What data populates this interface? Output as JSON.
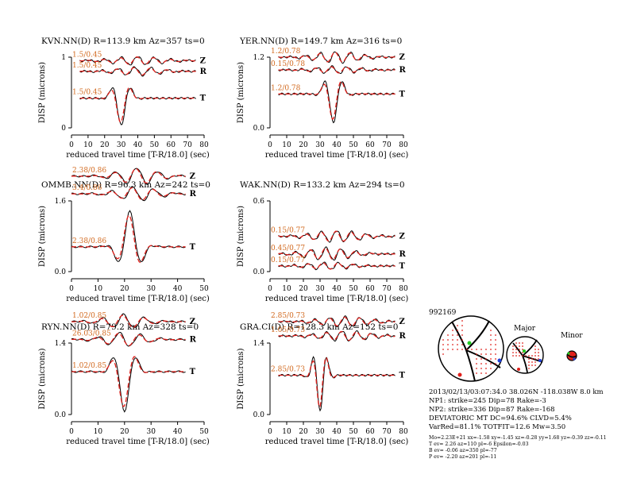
{
  "colors": {
    "observed": "#000000",
    "synthetic": "#e0201b",
    "label": "#d2691e",
    "ball_fill": "#ffffff",
    "dots": "#e0201b"
  },
  "chart_data": [
    {
      "type": "line",
      "title": "KVN.NN(D) R=113.9 km Az=357 ts=0",
      "xlabel": "reduced travel time [T-R/18.0] (sec)",
      "ylabel": "DISP (microns)",
      "xlim": [
        0,
        80
      ],
      "xticks": [
        "0",
        "10",
        "20",
        "30",
        "40",
        "50",
        "60",
        "70",
        "80"
      ],
      "yticks": [
        "0",
        "1"
      ],
      "components": [
        {
          "name": "Z",
          "label": "1.5/0.45",
          "offset": 0.95,
          "amp": 0.06,
          "start": 5,
          "end": 75,
          "center": 40,
          "width": 20,
          "period": 10,
          "phase": 0
        },
        {
          "name": "R",
          "label": "1.5/0.45",
          "offset": 0.8,
          "amp": 0.06,
          "start": 5,
          "end": 75,
          "center": 40,
          "width": 18,
          "period": 10,
          "phase": 1.2
        },
        {
          "name": "T",
          "label": "1.5/0.45",
          "offset": 0.42,
          "amp": 0.38,
          "start": 5,
          "end": 75,
          "center": 30,
          "width": 6,
          "period": 13,
          "phase": 3.14
        }
      ]
    },
    {
      "type": "line",
      "title": "YER.NN(D) R=149.7 km Az=316 ts=0",
      "xlabel": "reduced travel time [T-R/18.0] (sec)",
      "ylabel": "DISP (microns)",
      "xlim": [
        0,
        80
      ],
      "xticks": [
        "0",
        "10",
        "20",
        "30",
        "40",
        "50",
        "60",
        "70",
        "80"
      ],
      "yticks": [
        "0.0",
        "1.2"
      ],
      "components": [
        {
          "name": "Z",
          "label": "1.2/0.78",
          "offset": 1.0,
          "amp": 0.08,
          "start": 5,
          "end": 75,
          "center": 40,
          "width": 18,
          "period": 9,
          "phase": 0.5
        },
        {
          "name": "R",
          "label": "0.15/0.78",
          "offset": 0.82,
          "amp": 0.05,
          "start": 5,
          "end": 75,
          "center": 40,
          "width": 18,
          "period": 9,
          "phase": 2
        },
        {
          "name": "T",
          "label": "1.2/0.78",
          "offset": 0.48,
          "amp": 0.4,
          "start": 5,
          "end": 75,
          "center": 38,
          "width": 6,
          "period": 12,
          "phase": 3.14
        }
      ]
    },
    {
      "type": "line",
      "title": "OMMB.NN(D) R=96.3 km Az=242 ts=0",
      "xlabel": "reduced travel time [T-R/18.0] (sec)",
      "ylabel": "DISP (microns)",
      "xlim": [
        0,
        50
      ],
      "xticks": [
        "0",
        "10",
        "20",
        "30",
        "40",
        "50"
      ],
      "yticks": [
        "0.0",
        "1.6"
      ],
      "components": [
        {
          "name": "Z",
          "label": "2.38/0.86",
          "offset": 1.35,
          "amp": 0.12,
          "start": 0,
          "end": 43,
          "center": 25,
          "width": 10,
          "period": 8,
          "phase": 0.3
        },
        {
          "name": "R",
          "label": "3.4/0.86",
          "offset": 1.1,
          "amp": 0.1,
          "start": 0,
          "end": 43,
          "center": 25,
          "width": 10,
          "period": 8,
          "phase": 1.5
        },
        {
          "name": "T",
          "label": "2.38/0.86",
          "offset": 0.35,
          "amp": 0.5,
          "start": 0,
          "end": 43,
          "center": 22,
          "width": 5,
          "period": 10,
          "phase": 0
        }
      ]
    },
    {
      "type": "line",
      "title": "WAK.NN(D) R=133.2 km Az=294 ts=0",
      "xlabel": "reduced travel time [T-R/18.0] (sec)",
      "ylabel": "DISP (microns)",
      "xlim": [
        0,
        80
      ],
      "xticks": [
        "0",
        "10",
        "20",
        "30",
        "40",
        "50",
        "60",
        "70",
        "80"
      ],
      "yticks": [
        "0.0",
        "0.6"
      ],
      "components": [
        {
          "name": "Z",
          "label": "0.15/0.77",
          "offset": 0.5,
          "amp": 0.08,
          "start": 5,
          "end": 75,
          "center": 40,
          "width": 20,
          "period": 9,
          "phase": 0
        },
        {
          "name": "R",
          "label": "0.45/0.77",
          "offset": 0.25,
          "amp": 0.09,
          "start": 5,
          "end": 75,
          "center": 35,
          "width": 18,
          "period": 9,
          "phase": 1
        },
        {
          "name": "T",
          "label": "0.15/0.77",
          "offset": 0.08,
          "amp": 0.05,
          "start": 5,
          "end": 75,
          "center": 35,
          "width": 18,
          "period": 9,
          "phase": 2
        }
      ]
    },
    {
      "type": "line",
      "title": "RYN.NN(D) R=79.2 km Az=328 ts=0",
      "xlabel": "reduced travel time [T-R/18.0] (sec)",
      "ylabel": "DISP (microns)",
      "xlim": [
        0,
        50
      ],
      "xticks": [
        "0",
        "10",
        "20",
        "30",
        "40",
        "50"
      ],
      "yticks": [
        "0.0",
        "1.4"
      ],
      "components": [
        {
          "name": "Z",
          "label": "1.02/0.85",
          "offset": 1.3,
          "amp": 0.1,
          "start": 0,
          "end": 43,
          "center": 20,
          "width": 10,
          "period": 8,
          "phase": 0.3
        },
        {
          "name": "R",
          "label": "26.03/0.85",
          "offset": 1.05,
          "amp": 0.1,
          "start": 0,
          "end": 43,
          "center": 20,
          "width": 10,
          "period": 8,
          "phase": 1.6
        },
        {
          "name": "T",
          "label": "1.02/0.85",
          "offset": 0.6,
          "amp": 0.55,
          "start": 0,
          "end": 43,
          "center": 20,
          "width": 4.5,
          "period": 10,
          "phase": 3.14
        }
      ]
    },
    {
      "type": "line",
      "title": "GRA.CI(D) R=128.3 km Az=152 ts=0",
      "xlabel": "reduced travel time [T-R/18.0] (sec)",
      "ylabel": "DISP (microns)",
      "xlim": [
        0,
        80
      ],
      "xticks": [
        "0",
        "10",
        "20",
        "30",
        "40",
        "50",
        "60",
        "70",
        "80"
      ],
      "yticks": [
        "0.0",
        "1.4"
      ],
      "components": [
        {
          "name": "Z",
          "label": "2.85/0.73",
          "offset": 1.3,
          "amp": 0.07,
          "start": 5,
          "end": 75,
          "center": 45,
          "width": 20,
          "period": 9,
          "phase": 0
        },
        {
          "name": "R",
          "label": "1.05/0.73",
          "offset": 1.1,
          "amp": 0.07,
          "start": 5,
          "end": 75,
          "center": 45,
          "width": 20,
          "period": 9,
          "phase": 1.3
        },
        {
          "name": "T",
          "label": "2.85/0.73",
          "offset": 0.55,
          "amp": 0.5,
          "start": 5,
          "end": 75,
          "center": 30,
          "width": 5,
          "period": 9,
          "phase": 3.14
        }
      ]
    }
  ],
  "mechanism": {
    "event_id": "992169",
    "major_label": "Major",
    "minor_label": "Minor",
    "lines": [
      "2013/02/13/03:07:34.0 38.026N -118.038W 8.0 km",
      "NP1: strike=245 Dip=78 Rake=-3",
      "NP2: strike=336 Dip=87 Rake=-168",
      "DEVIATORIC MT DC=94.6% CLVD=5.4%",
      "VarRed=81.1% TOTFIT=12.6 Mw=3.50"
    ],
    "small_lines": [
      "Mo=2.23E+21 xx=-1.58 xy=-1.45 xz=-0.28 yy=1.68 yz=-0.39 zz=-0.11",
      "T ev= 2.26 az=110 pl=-6 Epsilon=-0.03",
      "B ev= -0.06 az=350 pl=-77",
      "P ev= -2.20 az=201 pl=-11"
    ]
  }
}
